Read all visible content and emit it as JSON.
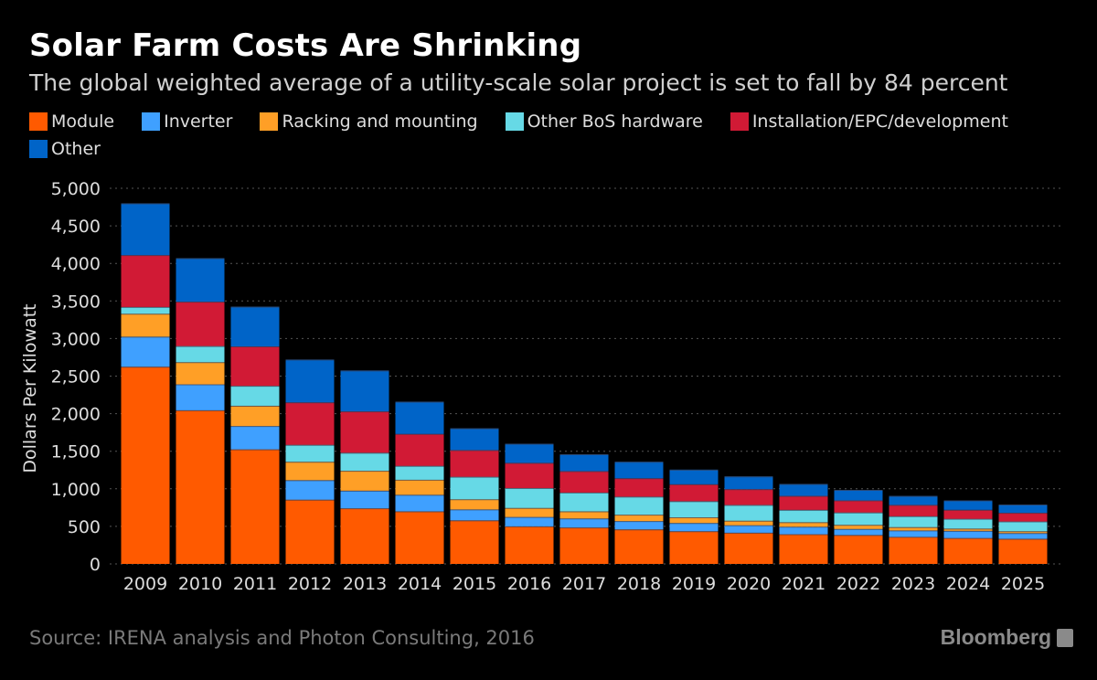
{
  "header": {
    "title": "Solar Farm Costs Are Shrinking",
    "subtitle": "The global weighted average of a utility-scale solar project is set to fall by 84 percent"
  },
  "footer": {
    "source": "Source: IRENA analysis and Photon Consulting, 2016",
    "logo": "Bloomberg"
  },
  "chart_data": {
    "type": "bar",
    "stacked": true,
    "ylabel": "Dollars Per Kilowatt",
    "xlabel": "",
    "ylim": [
      0,
      5000
    ],
    "yticks": [
      "0",
      "500",
      "1,000",
      "1,500",
      "2,000",
      "2,500",
      "3,000",
      "3,500",
      "4,000",
      "4,500",
      "5,000"
    ],
    "grid": true,
    "legend_position": "top",
    "categories": [
      "2009",
      "2010",
      "2011",
      "2012",
      "2013",
      "2014",
      "2015",
      "2016",
      "2017",
      "2018",
      "2019",
      "2020",
      "2021",
      "2022",
      "2023",
      "2024",
      "2025"
    ],
    "series": [
      {
        "name": "Module",
        "color": "#ff5a00",
        "values": [
          2625,
          2045,
          1525,
          855,
          740,
          700,
          580,
          500,
          485,
          460,
          435,
          415,
          395,
          385,
          360,
          345,
          335
        ]
      },
      {
        "name": "Inverter",
        "color": "#3fa0ff",
        "values": [
          400,
          345,
          310,
          260,
          235,
          220,
          145,
          125,
          120,
          110,
          110,
          100,
          100,
          80,
          85,
          95,
          75
        ]
      },
      {
        "name": "Racking and mounting",
        "color": "#ff9f26",
        "values": [
          305,
          295,
          270,
          245,
          265,
          200,
          135,
          120,
          95,
          85,
          75,
          60,
          60,
          55,
          45,
          30,
          25
        ]
      },
      {
        "name": "Other BoS hardware",
        "color": "#66d9e6",
        "values": [
          90,
          215,
          265,
          225,
          240,
          185,
          300,
          265,
          250,
          240,
          215,
          210,
          165,
          165,
          145,
          130,
          130
        ]
      },
      {
        "name": "Installation/EPC/development",
        "color": "#d11a35",
        "values": [
          690,
          590,
          525,
          565,
          550,
          425,
          355,
          335,
          285,
          245,
          225,
          210,
          185,
          160,
          150,
          120,
          115
        ]
      },
      {
        "name": "Other",
        "color": "#0064c8",
        "values": [
          690,
          580,
          530,
          570,
          545,
          430,
          290,
          255,
          225,
          220,
          195,
          170,
          160,
          140,
          120,
          125,
          110
        ]
      }
    ]
  }
}
